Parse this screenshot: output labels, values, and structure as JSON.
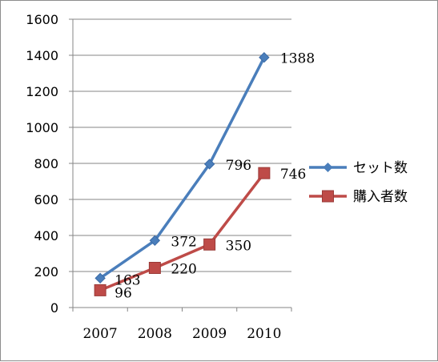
{
  "chart_data": {
    "type": "line",
    "categories": [
      "2007",
      "2008",
      "2009",
      "2010"
    ],
    "ylim": [
      0,
      1600
    ],
    "yticks": [
      0,
      200,
      400,
      600,
      800,
      1000,
      1200,
      1400,
      1600
    ],
    "grid": true,
    "legend_position": "right",
    "series": [
      {
        "name": "セット数",
        "values": [
          163,
          372,
          796,
          1388
        ],
        "color": "#4a7ebb",
        "marker": "diamond"
      },
      {
        "name": "購入者数",
        "values": [
          96,
          220,
          350,
          746
        ],
        "color": "#be4b48",
        "marker": "square"
      }
    ]
  }
}
